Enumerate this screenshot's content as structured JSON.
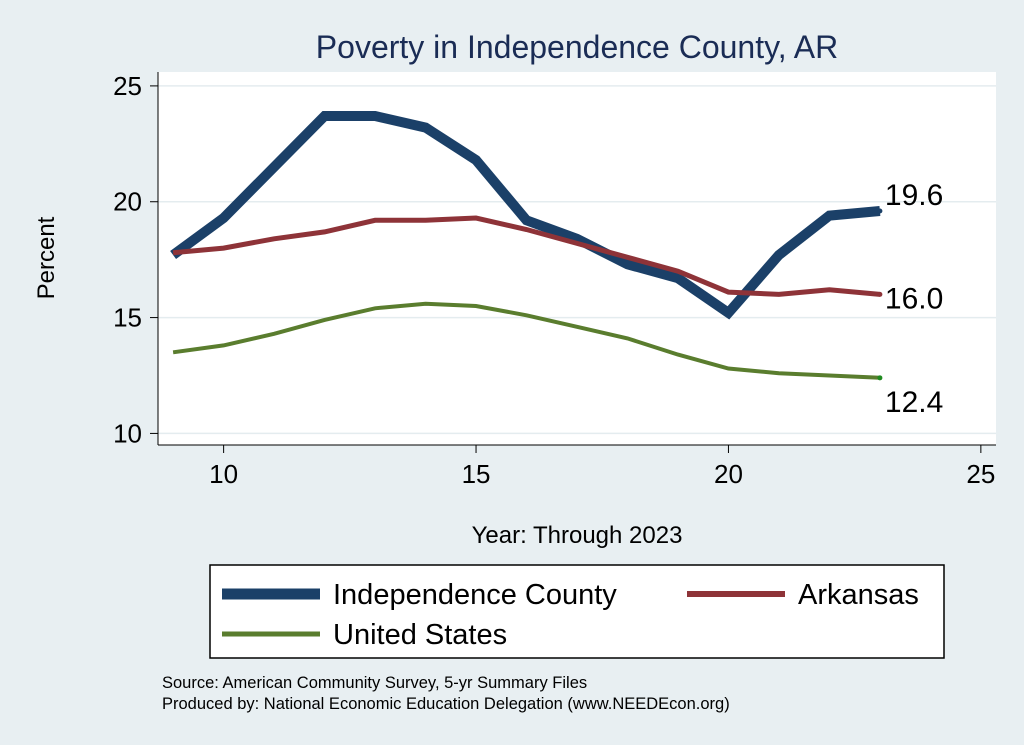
{
  "chart_data": {
    "type": "line",
    "title": "Poverty in Independence County, AR",
    "xlabel": "Year: Through 2023",
    "ylabel": "Percent",
    "xlim": [
      8.7,
      25.3
    ],
    "ylim": [
      9.5,
      25.6
    ],
    "xticks": [
      10,
      15,
      20,
      25
    ],
    "yticks": [
      10,
      15,
      20,
      25
    ],
    "grid": true,
    "legend_position": "bottom",
    "series": [
      {
        "name": "Independence County",
        "color": "#1b4068",
        "width": 10,
        "x": [
          9,
          10,
          11,
          12,
          13,
          14,
          15,
          16,
          17,
          18,
          19,
          20,
          21,
          22,
          23
        ],
        "y": [
          17.7,
          19.3,
          21.5,
          23.7,
          23.7,
          23.2,
          21.8,
          19.2,
          18.4,
          17.3,
          16.7,
          15.2,
          17.7,
          19.4,
          19.6
        ],
        "end_label": "19.6"
      },
      {
        "name": "Arkansas",
        "color": "#8e3338",
        "width": 5,
        "x": [
          9,
          10,
          11,
          12,
          13,
          14,
          15,
          16,
          17,
          18,
          19,
          20,
          21,
          22,
          23
        ],
        "y": [
          17.8,
          18.0,
          18.4,
          18.7,
          19.2,
          19.2,
          19.3,
          18.8,
          18.2,
          17.6,
          17.0,
          16.1,
          16.0,
          16.2,
          16.0
        ],
        "end_label": "16.0"
      },
      {
        "name": "United States",
        "color": "#5a7d2e",
        "width": 4,
        "x": [
          9,
          10,
          11,
          12,
          13,
          14,
          15,
          16,
          17,
          18,
          19,
          20,
          21,
          22,
          23
        ],
        "y": [
          13.5,
          13.8,
          14.3,
          14.9,
          15.4,
          15.6,
          15.5,
          15.1,
          14.6,
          14.1,
          13.4,
          12.8,
          12.6,
          12.5,
          12.4
        ],
        "end_label": "12.4"
      }
    ],
    "notes": [
      "Source: American Community Survey, 5-yr Summary Files",
      "Produced by: National Economic Education Delegation (www.NEEDEcon.org)"
    ]
  }
}
